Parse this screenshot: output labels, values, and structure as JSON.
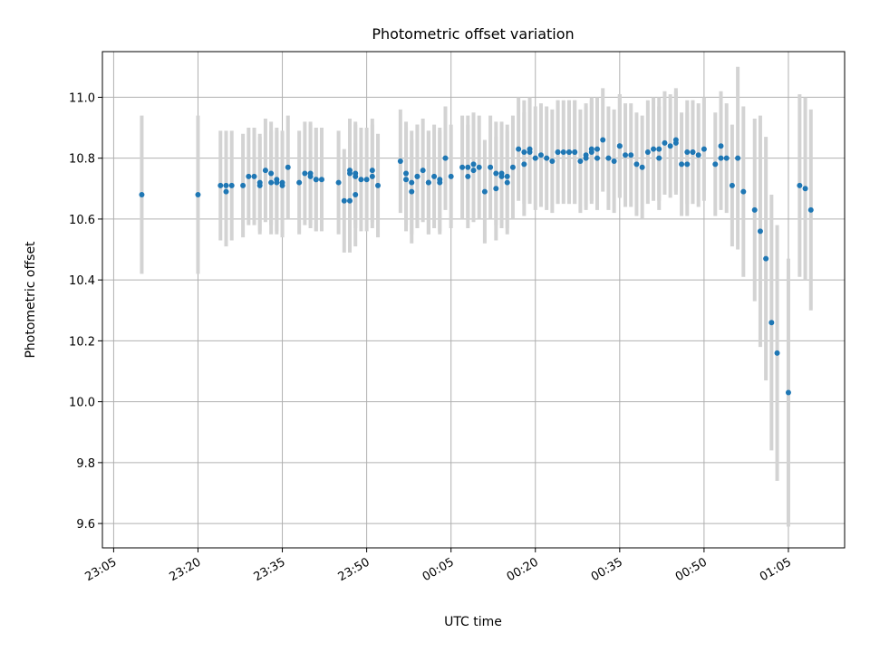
{
  "chart_data": {
    "type": "scatter",
    "title": "Photometric offset variation",
    "xlabel": "UTC time",
    "ylabel": "Photometric offset",
    "x_ticks": [
      "23:05",
      "23:20",
      "23:35",
      "23:50",
      "00:05",
      "00:20",
      "00:35",
      "00:50",
      "01:05"
    ],
    "y_ticks": [
      "9.6",
      "9.8",
      "10.0",
      "10.2",
      "10.4",
      "10.6",
      "10.8",
      "11.0"
    ],
    "xlim": [
      "23:03",
      "01:15"
    ],
    "ylim": [
      9.52,
      11.15
    ],
    "grid": true,
    "colors": {
      "point": "#1f77b4",
      "errorbar": "#d3d3d3",
      "grid": "#b0b0b0"
    },
    "series": [
      {
        "x": [
          "23:10",
          "23:20",
          "23:24",
          "23:25",
          "23:25",
          "23:26",
          "23:28",
          "23:29",
          "23:30",
          "23:31",
          "23:31",
          "23:32",
          "23:33",
          "23:33",
          "23:34",
          "23:34",
          "23:35",
          "23:35",
          "23:36",
          "23:38",
          "23:39",
          "23:40",
          "23:40",
          "23:41",
          "23:41",
          "23:42",
          "23:45",
          "23:46",
          "23:47",
          "23:47",
          "23:47",
          "23:48",
          "23:48",
          "23:48",
          "23:49",
          "23:50",
          "23:51",
          "23:51",
          "23:52",
          "23:56",
          "23:57",
          "23:57",
          "23:58",
          "23:58",
          "23:59",
          "23:59",
          "00:00",
          "00:01",
          "00:01",
          "00:02",
          "00:03",
          "00:03",
          "00:04",
          "00:05",
          "00:07",
          "00:08",
          "00:08",
          "00:09",
          "00:09",
          "00:10",
          "00:11",
          "00:12",
          "00:13",
          "00:13",
          "00:14",
          "00:14",
          "00:15",
          "00:15",
          "00:16",
          "00:17",
          "00:18",
          "00:18",
          "00:19",
          "00:19",
          "00:20",
          "00:21",
          "00:22",
          "00:23",
          "00:24",
          "00:24",
          "00:25",
          "00:26",
          "00:26",
          "00:27",
          "00:27",
          "00:28",
          "00:29",
          "00:29",
          "00:30",
          "00:30",
          "00:31",
          "00:31",
          "00:32",
          "00:33",
          "00:34",
          "00:35",
          "00:35",
          "00:36",
          "00:37",
          "00:38",
          "00:39",
          "00:40",
          "00:41",
          "00:42",
          "00:42",
          "00:43",
          "00:44",
          "00:45",
          "00:45",
          "00:46",
          "00:47",
          "00:47",
          "00:48",
          "00:48",
          "00:49",
          "00:50",
          "00:52",
          "00:53",
          "00:53",
          "00:54",
          "00:55",
          "00:56",
          "00:57",
          "00:59",
          "01:00",
          "01:01",
          "01:02",
          "01:03",
          "01:05",
          "01:07",
          "01:08",
          "01:09"
        ],
        "y": [
          10.68,
          10.68,
          10.71,
          10.69,
          10.71,
          10.71,
          10.71,
          10.74,
          10.74,
          10.71,
          10.72,
          10.76,
          10.75,
          10.72,
          10.73,
          10.72,
          10.71,
          10.72,
          10.77,
          10.72,
          10.75,
          10.75,
          10.74,
          10.73,
          10.73,
          10.73,
          10.72,
          10.66,
          10.66,
          10.75,
          10.76,
          10.75,
          10.74,
          10.68,
          10.73,
          10.73,
          10.74,
          10.76,
          10.71,
          10.79,
          10.75,
          10.73,
          10.72,
          10.69,
          10.74,
          10.74,
          10.76,
          10.72,
          10.72,
          10.74,
          10.73,
          10.72,
          10.8,
          10.74,
          10.77,
          10.74,
          10.77,
          10.78,
          10.76,
          10.77,
          10.69,
          10.77,
          10.75,
          10.7,
          10.75,
          10.74,
          10.74,
          10.72,
          10.77,
          10.83,
          10.78,
          10.82,
          10.82,
          10.83,
          10.8,
          10.81,
          10.8,
          10.79,
          10.82,
          10.82,
          10.82,
          10.82,
          10.82,
          10.82,
          10.82,
          10.79,
          10.8,
          10.81,
          10.83,
          10.82,
          10.8,
          10.83,
          10.86,
          10.8,
          10.79,
          10.84,
          10.84,
          10.81,
          10.81,
          10.78,
          10.77,
          10.82,
          10.83,
          10.83,
          10.8,
          10.85,
          10.84,
          10.86,
          10.85,
          10.78,
          10.82,
          10.78,
          10.82,
          10.82,
          10.81,
          10.83,
          10.78,
          10.8,
          10.84,
          10.8,
          10.71,
          10.8,
          10.69,
          10.63,
          10.56,
          10.47,
          10.26,
          10.16,
          10.03,
          10.71,
          10.7,
          10.63
        ],
        "err": [
          0.26,
          0.26,
          0.18,
          0.18,
          0.18,
          0.18,
          0.17,
          0.16,
          0.16,
          0.16,
          0.16,
          0.17,
          0.17,
          0.17,
          0.17,
          0.17,
          0.17,
          0.17,
          0.17,
          0.17,
          0.17,
          0.17,
          0.17,
          0.17,
          0.17,
          0.17,
          0.17,
          0.17,
          0.17,
          0.17,
          0.17,
          0.17,
          0.17,
          0.17,
          0.17,
          0.17,
          0.17,
          0.17,
          0.17,
          0.17,
          0.17,
          0.17,
          0.17,
          0.17,
          0.17,
          0.17,
          0.17,
          0.17,
          0.17,
          0.17,
          0.17,
          0.17,
          0.17,
          0.17,
          0.17,
          0.17,
          0.17,
          0.17,
          0.17,
          0.17,
          0.17,
          0.17,
          0.17,
          0.17,
          0.17,
          0.17,
          0.17,
          0.17,
          0.17,
          0.17,
          0.17,
          0.17,
          0.17,
          0.17,
          0.17,
          0.17,
          0.17,
          0.17,
          0.17,
          0.17,
          0.17,
          0.17,
          0.17,
          0.17,
          0.17,
          0.17,
          0.17,
          0.17,
          0.17,
          0.17,
          0.17,
          0.17,
          0.17,
          0.17,
          0.17,
          0.17,
          0.17,
          0.17,
          0.17,
          0.17,
          0.17,
          0.17,
          0.17,
          0.17,
          0.17,
          0.17,
          0.17,
          0.17,
          0.17,
          0.17,
          0.17,
          0.17,
          0.17,
          0.17,
          0.17,
          0.17,
          0.17,
          0.17,
          0.18,
          0.18,
          0.2,
          0.3,
          0.28,
          0.3,
          0.38,
          0.4,
          0.42,
          0.42,
          0.44,
          0.3,
          0.3,
          0.33
        ]
      }
    ]
  }
}
